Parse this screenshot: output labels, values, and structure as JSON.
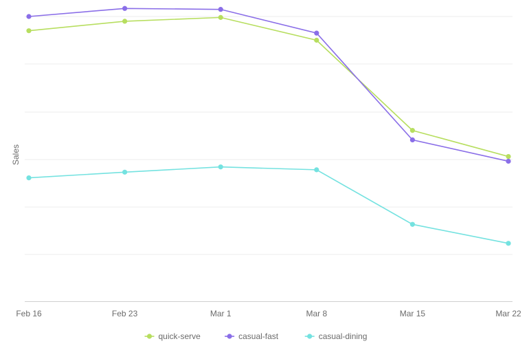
{
  "chart_data": {
    "type": "line",
    "title": "",
    "xlabel": "",
    "ylabel": "Sales",
    "x": [
      "Feb 16",
      "Feb 23",
      "Mar 1",
      "Mar 8",
      "Mar 15",
      "Mar 22"
    ],
    "ylim": [
      0,
      6
    ],
    "grid": true,
    "legend_position": "bottom",
    "series": [
      {
        "name": "quick-serve",
        "color": "#b7de5f",
        "values": [
          5.7,
          5.9,
          5.98,
          5.5,
          3.6,
          3.05
        ]
      },
      {
        "name": "casual-fast",
        "color": "#8a6ee8",
        "values": [
          6.0,
          6.17,
          6.15,
          5.65,
          3.4,
          2.95
        ]
      },
      {
        "name": "casual-dining",
        "color": "#74e2e0",
        "values": [
          2.6,
          2.72,
          2.83,
          2.77,
          1.62,
          1.22
        ]
      }
    ]
  }
}
